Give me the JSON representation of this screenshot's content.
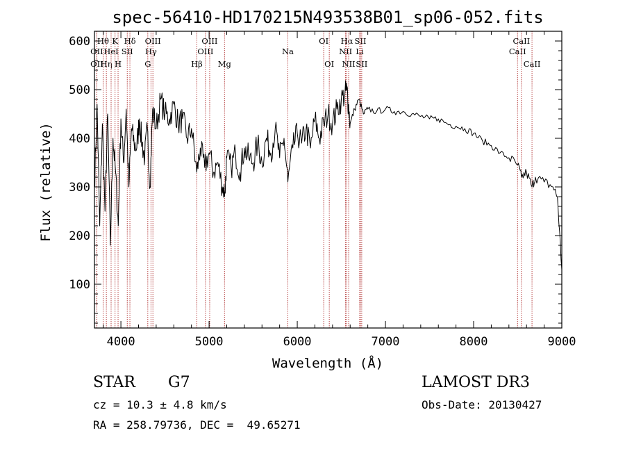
{
  "chart_data": {
    "type": "line",
    "title": "spec-56410-HD170215N493538B01_sp06-052.fits",
    "xlabel": "Wavelength (Å)",
    "ylabel": "Flux (relative)",
    "xlim": [
      3700,
      9000
    ],
    "ylim": [
      10,
      620
    ],
    "xticks": [
      4000,
      5000,
      6000,
      7000,
      8000,
      9000
    ],
    "yticks": [
      100,
      200,
      300,
      400,
      500,
      600
    ],
    "series": [
      {
        "name": "spectrum",
        "x": [
          3700,
          3730,
          3760,
          3790,
          3820,
          3850,
          3880,
          3910,
          3940,
          3970,
          4000,
          4030,
          4060,
          4090,
          4120,
          4150,
          4180,
          4210,
          4240,
          4270,
          4300,
          4330,
          4360,
          4400,
          4450,
          4500,
          4550,
          4600,
          4650,
          4700,
          4750,
          4800,
          4861,
          4900,
          4950,
          5000,
          5050,
          5100,
          5150,
          5180,
          5200,
          5250,
          5300,
          5350,
          5400,
          5450,
          5500,
          5550,
          5600,
          5650,
          5700,
          5750,
          5800,
          5850,
          5893,
          5950,
          6000,
          6050,
          6100,
          6150,
          6200,
          6250,
          6300,
          6350,
          6400,
          6450,
          6500,
          6540,
          6563,
          6580,
          6600,
          6650,
          6700,
          6750,
          6800,
          6900,
          7000,
          7100,
          7200,
          7300,
          7400,
          7500,
          7600,
          7700,
          7800,
          7900,
          8000,
          8100,
          8200,
          8300,
          8400,
          8500,
          8542,
          8600,
          8662,
          8700,
          8800,
          8900,
          8950,
          9000
        ],
        "y": [
          300,
          470,
          220,
          430,
          250,
          450,
          180,
          400,
          330,
          220,
          440,
          350,
          460,
          300,
          420,
          390,
          380,
          440,
          390,
          360,
          420,
          300,
          460,
          420,
          480,
          450,
          440,
          470,
          430,
          440,
          400,
          420,
          330,
          380,
          340,
          370,
          330,
          350,
          300,
          290,
          360,
          340,
          370,
          330,
          380,
          360,
          350,
          390,
          350,
          400,
          370,
          420,
          360,
          400,
          310,
          380,
          410,
          390,
          420,
          380,
          440,
          400,
          430,
          450,
          430,
          460,
          480,
          490,
          500,
          470,
          430,
          460,
          480,
          450,
          460,
          455,
          460,
          455,
          455,
          450,
          445,
          440,
          440,
          430,
          425,
          420,
          410,
          395,
          385,
          370,
          360,
          345,
          320,
          330,
          300,
          320,
          310,
          300,
          280,
          130
        ]
      }
    ],
    "spectral_lines": [
      {
        "name": "OII",
        "wavelength": 3727,
        "row": 1
      },
      {
        "name": "OII",
        "wavelength": 3727,
        "row": 2
      },
      {
        "name": "Hθ",
        "wavelength": 3798,
        "row": 0
      },
      {
        "name": "Hη",
        "wavelength": 3835,
        "row": 2
      },
      {
        "name": "HeI",
        "wavelength": 3889,
        "row": 1
      },
      {
        "name": "K",
        "wavelength": 3934,
        "row": 0
      },
      {
        "name": "H",
        "wavelength": 3968,
        "row": 2
      },
      {
        "name": "SII",
        "wavelength": 4072,
        "row": 1
      },
      {
        "name": "Hδ",
        "wavelength": 4102,
        "row": 0
      },
      {
        "name": "G",
        "wavelength": 4305,
        "row": 2
      },
      {
        "name": "Hγ",
        "wavelength": 4341,
        "row": 1
      },
      {
        "name": "OIII",
        "wavelength": 4363,
        "row": 0
      },
      {
        "name": "Hβ",
        "wavelength": 4861,
        "row": 2
      },
      {
        "name": "OIII",
        "wavelength": 4959,
        "row": 1
      },
      {
        "name": "OIII",
        "wavelength": 5007,
        "row": 0
      },
      {
        "name": "Mg",
        "wavelength": 5175,
        "row": 2
      },
      {
        "name": "Na",
        "wavelength": 5893,
        "row": 1
      },
      {
        "name": "OI",
        "wavelength": 6300,
        "row": 0
      },
      {
        "name": "OI",
        "wavelength": 6363,
        "row": 2
      },
      {
        "name": "NII",
        "wavelength": 6548,
        "row": 1
      },
      {
        "name": "Hα",
        "wavelength": 6563,
        "row": 0
      },
      {
        "name": "NII",
        "wavelength": 6583,
        "row": 2
      },
      {
        "name": "SII",
        "wavelength": 6716,
        "row": 0
      },
      {
        "name": "Li",
        "wavelength": 6708,
        "row": 1
      },
      {
        "name": "SII",
        "wavelength": 6731,
        "row": 2
      },
      {
        "name": "CaII",
        "wavelength": 8498,
        "row": 1
      },
      {
        "name": "CaII",
        "wavelength": 8542,
        "row": 0
      },
      {
        "name": "CaII",
        "wavelength": 8662,
        "row": 2
      }
    ]
  },
  "info": {
    "object_type": "STAR",
    "subclass": "G7",
    "survey": "LAMOST DR3",
    "cz": "cz = 10.3 ± 4.8 km/s",
    "obs_date": "Obs-Date: 20130427",
    "coords": "RA = 258.79736, DEC =  49.65271"
  },
  "colors": {
    "line_marker": "#b03030",
    "spectrum": "#000000"
  }
}
